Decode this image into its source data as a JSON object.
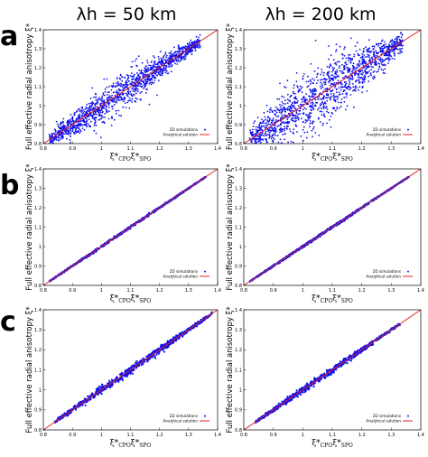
{
  "columns": [
    "λh = 50 km",
    "λh = 200 km"
  ],
  "rows": [
    "a",
    "b",
    "c"
  ],
  "ylabel": "Full effective radial anisotropy ξ*",
  "xlabel": {
    "main": "ξ*",
    "sub1": "CPO",
    "mid": "ξ*",
    "sub2": "SPO"
  },
  "colors": {
    "points": "#1010ee",
    "analytical": "#e02020"
  },
  "chart_data": [
    {
      "type": "scatter",
      "panel": "a-left",
      "xlim": [
        0.8,
        1.4
      ],
      "ylim": [
        0.8,
        1.4
      ],
      "xticks": [
        "0.8",
        "0.9",
        "1",
        "1.1",
        "1.2",
        "1.3",
        "1.4"
      ],
      "yticks": [
        "0.8",
        "0.9",
        "1",
        "1.1",
        "1.2",
        "1.3",
        "1.4"
      ],
      "series": [
        {
          "name": "2D simulations",
          "x_range": [
            0.82,
            1.34
          ],
          "spread": 0.09
        },
        {
          "name": "Analytical solution",
          "line": [
            [
              0.8,
              0.8
            ],
            [
              1.4,
              1.4
            ]
          ]
        }
      ]
    },
    {
      "type": "scatter",
      "panel": "a-right",
      "xlim": [
        0.8,
        1.4
      ],
      "ylim": [
        0.8,
        1.4
      ],
      "xticks": [
        "0.8",
        "0.9",
        "1",
        "1.1",
        "1.2",
        "1.3",
        "1.4"
      ],
      "yticks": [
        "0.8",
        "0.9",
        "1",
        "1.1",
        "1.2",
        "1.3",
        "1.4"
      ],
      "series": [
        {
          "name": "2D simulations",
          "x_range": [
            0.82,
            1.34
          ],
          "spread": 0.16
        },
        {
          "name": "Analytical solution",
          "line": [
            [
              0.8,
              0.8
            ],
            [
              1.4,
              1.4
            ]
          ]
        }
      ]
    },
    {
      "type": "scatter",
      "panel": "b-left",
      "xlim": [
        0.8,
        1.4
      ],
      "ylim": [
        0.8,
        1.4
      ],
      "xticks": [
        "0.8",
        "0.9",
        "1",
        "1.1",
        "1.2",
        "1.3",
        "1.4"
      ],
      "yticks": [
        "0.8",
        "0.9",
        "1",
        "1.1",
        "1.2",
        "1.3",
        "1.4"
      ],
      "series": [
        {
          "name": "2D simulations",
          "x_range": [
            0.82,
            1.36
          ],
          "spread": 0.006
        },
        {
          "name": "Analytical solution",
          "line": [
            [
              0.8,
              0.8
            ],
            [
              1.4,
              1.4
            ]
          ]
        }
      ]
    },
    {
      "type": "scatter",
      "panel": "b-right",
      "xlim": [
        0.8,
        1.4
      ],
      "ylim": [
        0.8,
        1.4
      ],
      "xticks": [
        "0.8",
        "0.9",
        "1",
        "1.1",
        "1.2",
        "1.3",
        "1.4"
      ],
      "yticks": [
        "0.8",
        "0.9",
        "1",
        "1.1",
        "1.2",
        "1.3",
        "1.4"
      ],
      "series": [
        {
          "name": "2D simulations",
          "x_range": [
            0.82,
            1.36
          ],
          "spread": 0.006
        },
        {
          "name": "Analytical solution",
          "line": [
            [
              0.8,
              0.8
            ],
            [
              1.4,
              1.4
            ]
          ]
        }
      ]
    },
    {
      "type": "scatter",
      "panel": "c-left",
      "xlim": [
        0.8,
        1.4
      ],
      "ylim": [
        0.8,
        1.4
      ],
      "xticks": [
        "0.8",
        "0.9",
        "1",
        "1.1",
        "1.2",
        "1.3",
        "1.4"
      ],
      "yticks": [
        "0.8",
        "0.9",
        "1",
        "1.1",
        "1.2",
        "1.3",
        "1.4"
      ],
      "series": [
        {
          "name": "2D simulations",
          "x_range": [
            0.84,
            1.38
          ],
          "spread": 0.02
        },
        {
          "name": "Analytical solution",
          "line": [
            [
              0.8,
              0.8
            ],
            [
              1.4,
              1.4
            ]
          ]
        }
      ]
    },
    {
      "type": "scatter",
      "panel": "c-right",
      "xlim": [
        0.8,
        1.4
      ],
      "ylim": [
        0.8,
        1.4
      ],
      "xticks": [
        "0.8",
        "0.9",
        "1",
        "1.1",
        "1.2",
        "1.3",
        "1.4"
      ],
      "yticks": [
        "0.8",
        "0.9",
        "1",
        "1.1",
        "1.2",
        "1.3",
        "1.4"
      ],
      "series": [
        {
          "name": "2D simulations",
          "x_range": [
            0.84,
            1.33
          ],
          "spread": 0.015
        },
        {
          "name": "Analytical solution",
          "line": [
            [
              0.8,
              0.8
            ],
            [
              1.4,
              1.4
            ]
          ]
        }
      ]
    }
  ]
}
